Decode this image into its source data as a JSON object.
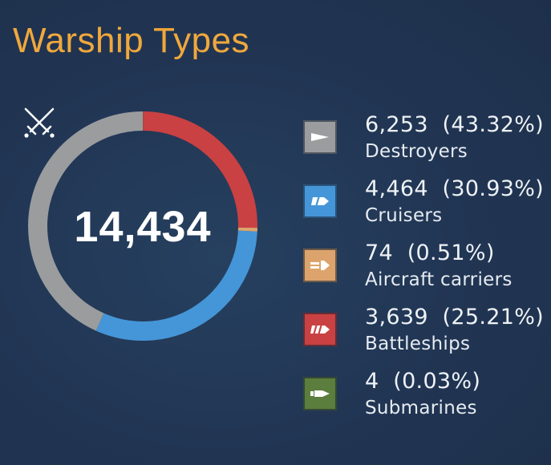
{
  "title": "Warship Types",
  "total": "14,434",
  "center_icon": "crossed-swords-icon",
  "chart_data": {
    "type": "pie",
    "title": "Warship Types",
    "total": 14434,
    "categories": [
      "Destroyers",
      "Cruisers",
      "Aircraft carriers",
      "Battleships",
      "Submarines"
    ],
    "values": [
      6253,
      4464,
      74,
      3639,
      4
    ],
    "percentages": [
      43.32,
      30.93,
      0.51,
      25.21,
      0.03
    ],
    "colors": [
      "#9a9c9e",
      "#4596d8",
      "#dca46c",
      "#c94142",
      "#5b7d3e"
    ],
    "start_angle_deg": 90,
    "direction": "counterclockwise",
    "legend_position": "right"
  },
  "legend": [
    {
      "value_text": "6,253  (43.32%)",
      "label": "Destroyers",
      "icon": "destroyer-class-icon",
      "color": "#9a9c9e"
    },
    {
      "value_text": "4,464  (30.93%)",
      "label": "Cruisers",
      "icon": "cruiser-class-icon",
      "color": "#4596d8"
    },
    {
      "value_text": "74  (0.51%)",
      "label": "Aircraft carriers",
      "icon": "aircraft-carrier-class-icon",
      "color": "#dca46c"
    },
    {
      "value_text": "3,639  (25.21%)",
      "label": "Battleships",
      "icon": "battleship-class-icon",
      "color": "#c94142"
    },
    {
      "value_text": "4  (0.03%)",
      "label": "Submarines",
      "icon": "submarine-class-icon",
      "color": "#5b7d3e"
    }
  ]
}
